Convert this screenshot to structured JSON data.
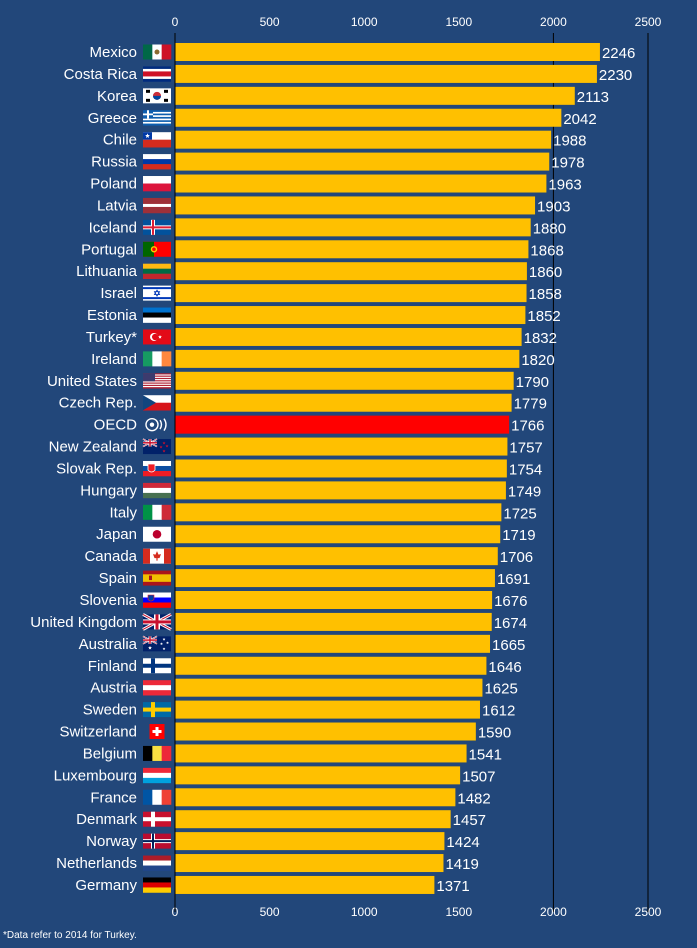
{
  "footnote": "*Data refer to 2014 for Turkey.",
  "colors": {
    "background": "#22477a",
    "bar": "#ffc000",
    "highlight": "#ff0000",
    "text": "#ffffff",
    "axis": "#000000"
  },
  "chart_data": {
    "type": "bar",
    "orientation": "horizontal",
    "title": "",
    "xlabel": "",
    "ylabel": "",
    "xlim": [
      0,
      2500
    ],
    "x_ticks": [
      0,
      500,
      1000,
      1500,
      2000,
      2500
    ],
    "x_axis_position": "top and bottom",
    "grid": "vertical lines at 2000 and 2500",
    "highlight_category": "OECD",
    "categories": [
      "Mexico",
      "Costa Rica",
      "Korea",
      "Greece",
      "Chile",
      "Russia",
      "Poland",
      "Latvia",
      "Iceland",
      "Portugal",
      "Lithuania",
      "Israel",
      "Estonia",
      "Turkey*",
      "Ireland",
      "United States",
      "Czech Rep.",
      "OECD",
      "New Zealand",
      "Slovak Rep.",
      "Hungary",
      "Italy",
      "Japan",
      "Canada",
      "Spain",
      "Slovenia",
      "United Kingdom",
      "Australia",
      "Finland",
      "Austria",
      "Sweden",
      "Switzerland",
      "Belgium",
      "Luxembourg",
      "France",
      "Denmark",
      "Norway",
      "Netherlands",
      "Germany"
    ],
    "values": [
      2246,
      2230,
      2113,
      2042,
      1988,
      1978,
      1963,
      1903,
      1880,
      1868,
      1860,
      1858,
      1852,
      1832,
      1820,
      1790,
      1779,
      1766,
      1757,
      1754,
      1749,
      1725,
      1719,
      1706,
      1691,
      1676,
      1674,
      1665,
      1646,
      1625,
      1612,
      1590,
      1541,
      1507,
      1482,
      1457,
      1424,
      1419,
      1371
    ],
    "flag_icons": [
      "mexico-flag-icon",
      "costa-rica-flag-icon",
      "korea-flag-icon",
      "greece-flag-icon",
      "chile-flag-icon",
      "russia-flag-icon",
      "poland-flag-icon",
      "latvia-flag-icon",
      "iceland-flag-icon",
      "portugal-flag-icon",
      "lithuania-flag-icon",
      "israel-flag-icon",
      "estonia-flag-icon",
      "turkey-flag-icon",
      "ireland-flag-icon",
      "united-states-flag-icon",
      "czech-flag-icon",
      "oecd-logo-icon",
      "new-zealand-flag-icon",
      "slovakia-flag-icon",
      "hungary-flag-icon",
      "italy-flag-icon",
      "japan-flag-icon",
      "canada-flag-icon",
      "spain-flag-icon",
      "slovenia-flag-icon",
      "united-kingdom-flag-icon",
      "australia-flag-icon",
      "finland-flag-icon",
      "austria-flag-icon",
      "sweden-flag-icon",
      "switzerland-flag-icon",
      "belgium-flag-icon",
      "luxembourg-flag-icon",
      "france-flag-icon",
      "denmark-flag-icon",
      "norway-flag-icon",
      "netherlands-flag-icon",
      "germany-flag-icon"
    ]
  }
}
